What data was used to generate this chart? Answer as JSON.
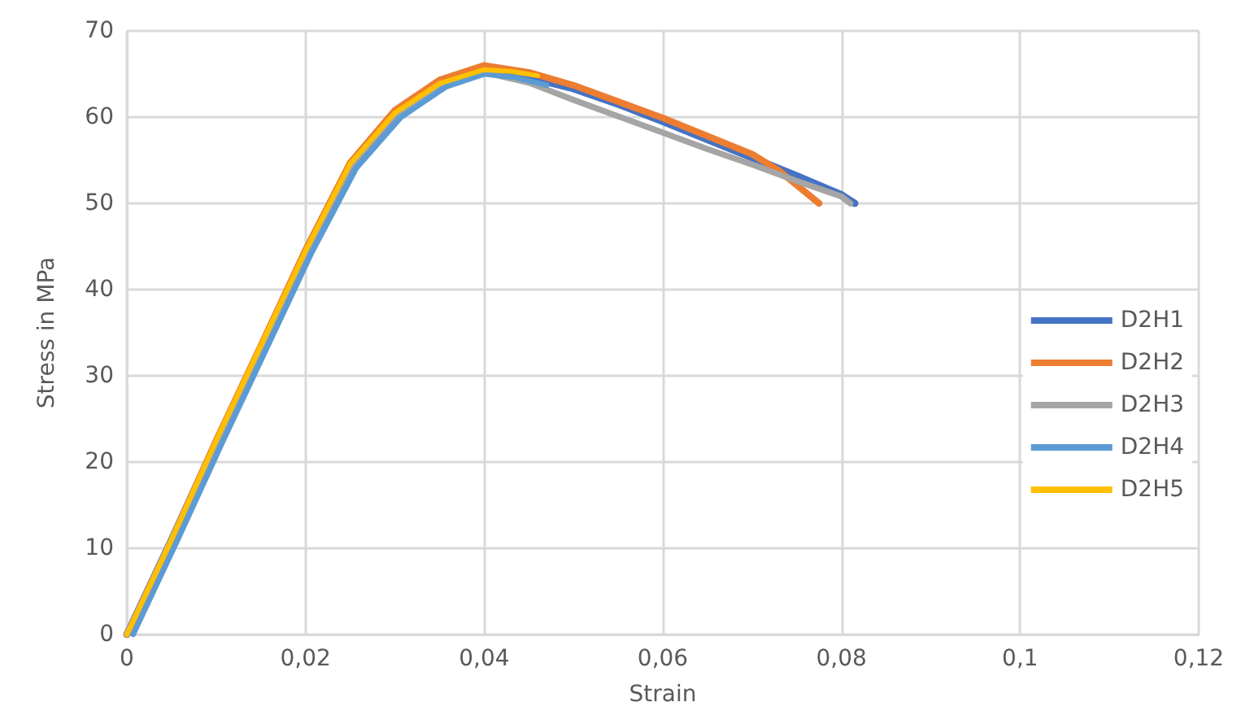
{
  "chart_data": {
    "type": "line",
    "xlabel": "Strain",
    "ylabel": "Stress in MPa",
    "xlim": [
      0,
      0.12
    ],
    "ylim": [
      0,
      70
    ],
    "xticks": [
      0,
      {
        "value": 0.02,
        "label": "0,02"
      },
      {
        "value": 0.04,
        "label": "0,04"
      },
      {
        "value": 0.06,
        "label": "0,06"
      },
      {
        "value": 0.08,
        "label": "0,08"
      },
      {
        "value": 0.1,
        "label": "0,1"
      },
      {
        "value": 0.12,
        "label": "0,12"
      }
    ],
    "yticks": [
      0,
      10,
      20,
      30,
      40,
      50,
      60,
      70
    ],
    "grid": true,
    "legend": "right",
    "marker": "none",
    "line_style": "solid",
    "series": [
      {
        "name": "D2H1",
        "color": "#4472c4",
        "x": [
          0,
          0.005,
          0.01,
          0.015,
          0.02,
          0.025,
          0.03,
          0.035,
          0.04,
          0.045,
          0.05,
          0.055,
          0.06,
          0.065,
          0.07,
          0.075,
          0.08,
          0.0815
        ],
        "values": [
          0,
          11,
          22.3,
          33.3,
          44.3,
          54.3,
          60.3,
          63.8,
          65.5,
          64.6,
          63.3,
          61.5,
          59.5,
          57.4,
          55.3,
          53.2,
          51,
          50
        ]
      },
      {
        "name": "D2H2",
        "color": "#ed7d31",
        "x": [
          0,
          0.005,
          0.01,
          0.015,
          0.02,
          0.025,
          0.03,
          0.035,
          0.04,
          0.045,
          0.05,
          0.055,
          0.06,
          0.065,
          0.07,
          0.073,
          0.0775
        ],
        "values": [
          0,
          11,
          22.5,
          33.5,
          44.6,
          54.7,
          60.8,
          64.3,
          66,
          65.2,
          63.7,
          61.8,
          59.9,
          57.8,
          55.7,
          53.8,
          50
        ]
      },
      {
        "name": "D2H3",
        "color": "#a5a5a5",
        "x": [
          0,
          0.005,
          0.01,
          0.015,
          0.02,
          0.025,
          0.03,
          0.035,
          0.04,
          0.045,
          0.05,
          0.055,
          0.06,
          0.065,
          0.07,
          0.075,
          0.08,
          0.081
        ],
        "values": [
          0,
          11,
          22.3,
          33.3,
          44.3,
          54.3,
          60.3,
          63.7,
          65.2,
          64,
          62,
          60.1,
          58.2,
          56.3,
          54.5,
          52.6,
          50.8,
          50
        ]
      },
      {
        "name": "D2H4",
        "color": "#5b9bd5",
        "x": [
          0.0007,
          0.0057,
          0.0107,
          0.0157,
          0.0207,
          0.0257,
          0.0307,
          0.0357,
          0.04,
          0.0435,
          0.047
        ],
        "values": [
          0,
          11,
          22.3,
          33.3,
          44.3,
          54.1,
          60,
          63.5,
          65,
          64.6,
          63.7
        ]
      },
      {
        "name": "D2H5",
        "color": "#ffc000",
        "x": [
          0,
          0.005,
          0.01,
          0.015,
          0.02,
          0.025,
          0.03,
          0.035,
          0.04,
          0.043,
          0.046
        ],
        "values": [
          0,
          11,
          22.5,
          33.5,
          44.5,
          54.6,
          60.5,
          63.9,
          65.5,
          65.3,
          64.8
        ]
      }
    ]
  }
}
